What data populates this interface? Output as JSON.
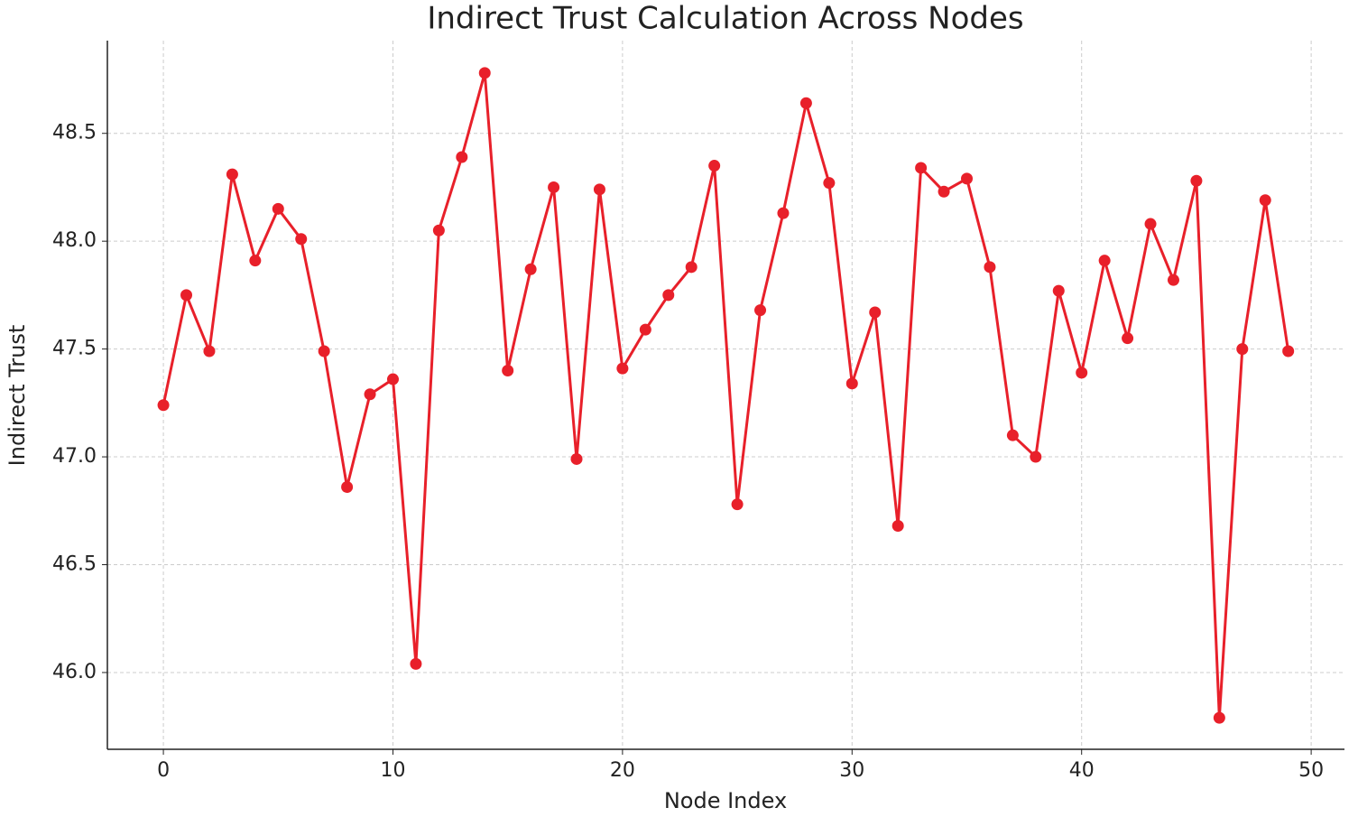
{
  "chart_data": {
    "type": "line",
    "title": "Indirect Trust Calculation Across Nodes",
    "x_label": "Node Index",
    "y_label": "Indirect Trust",
    "x": [
      0,
      1,
      2,
      3,
      4,
      5,
      6,
      7,
      8,
      9,
      10,
      11,
      12,
      13,
      14,
      15,
      16,
      17,
      18,
      19,
      20,
      21,
      22,
      23,
      24,
      25,
      26,
      27,
      28,
      29,
      30,
      31,
      32,
      33,
      34,
      35,
      36,
      37,
      38,
      39,
      40,
      41,
      42,
      43,
      44,
      45,
      46,
      47,
      48,
      49
    ],
    "series": [
      {
        "color": "#e8202a",
        "values": [
          47.24,
          47.75,
          47.49,
          48.31,
          47.91,
          48.15,
          48.01,
          47.49,
          46.86,
          47.29,
          47.36,
          46.04,
          48.05,
          48.39,
          48.78,
          47.4,
          47.87,
          48.25,
          46.99,
          48.24,
          47.41,
          47.59,
          47.75,
          47.88,
          48.35,
          46.78,
          47.68,
          48.13,
          48.64,
          48.27,
          47.34,
          47.67,
          46.68,
          48.34,
          48.23,
          48.29,
          47.88,
          47.1,
          47.0,
          47.77,
          47.39,
          47.91,
          47.55,
          48.08,
          47.82,
          48.28,
          45.79,
          47.5,
          48.19,
          47.49
        ]
      }
    ],
    "xlim": [
      -2.44,
      51.45
    ],
    "ylim": [
      45.644,
      48.93
    ],
    "xticks": [
      0,
      10,
      20,
      30,
      40,
      50
    ],
    "yticks": [
      {
        "value": 46,
        "label": "46.0"
      },
      46.5,
      {
        "value": 47,
        "label": "47.0"
      },
      47.5,
      {
        "value": 48,
        "label": "48.0"
      },
      48.5
    ],
    "grid": true
  }
}
